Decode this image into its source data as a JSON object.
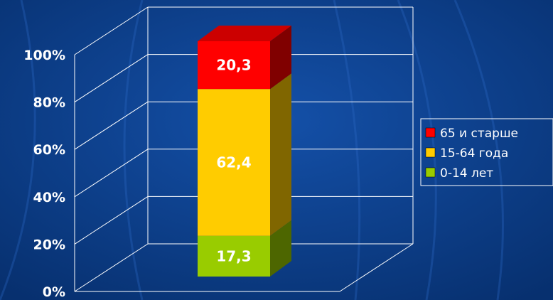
{
  "chart_data": {
    "type": "bar",
    "stacked": true,
    "percent": true,
    "categories": [
      ""
    ],
    "series": [
      {
        "name": "0-14 лет",
        "values": [
          17.3
        ],
        "color": "#99cc00"
      },
      {
        "name": "15-64 года",
        "values": [
          62.4
        ],
        "color": "#ffcc00"
      },
      {
        "name": "65 и старше",
        "values": [
          20.3
        ],
        "color": "#ff0000"
      }
    ],
    "data_labels": [
      "17,3",
      "62,4",
      "20,3"
    ],
    "y_ticks": [
      "0%",
      "20%",
      "40%",
      "60%",
      "80%",
      "100%"
    ],
    "ylim": [
      0,
      100
    ],
    "grid": true,
    "legend_position": "right",
    "legend_order": [
      "65 и старше",
      "15-64 года",
      "0-14 лет"
    ]
  },
  "colors": {
    "background": "#0b3a8a",
    "grid": "#ffffff"
  }
}
